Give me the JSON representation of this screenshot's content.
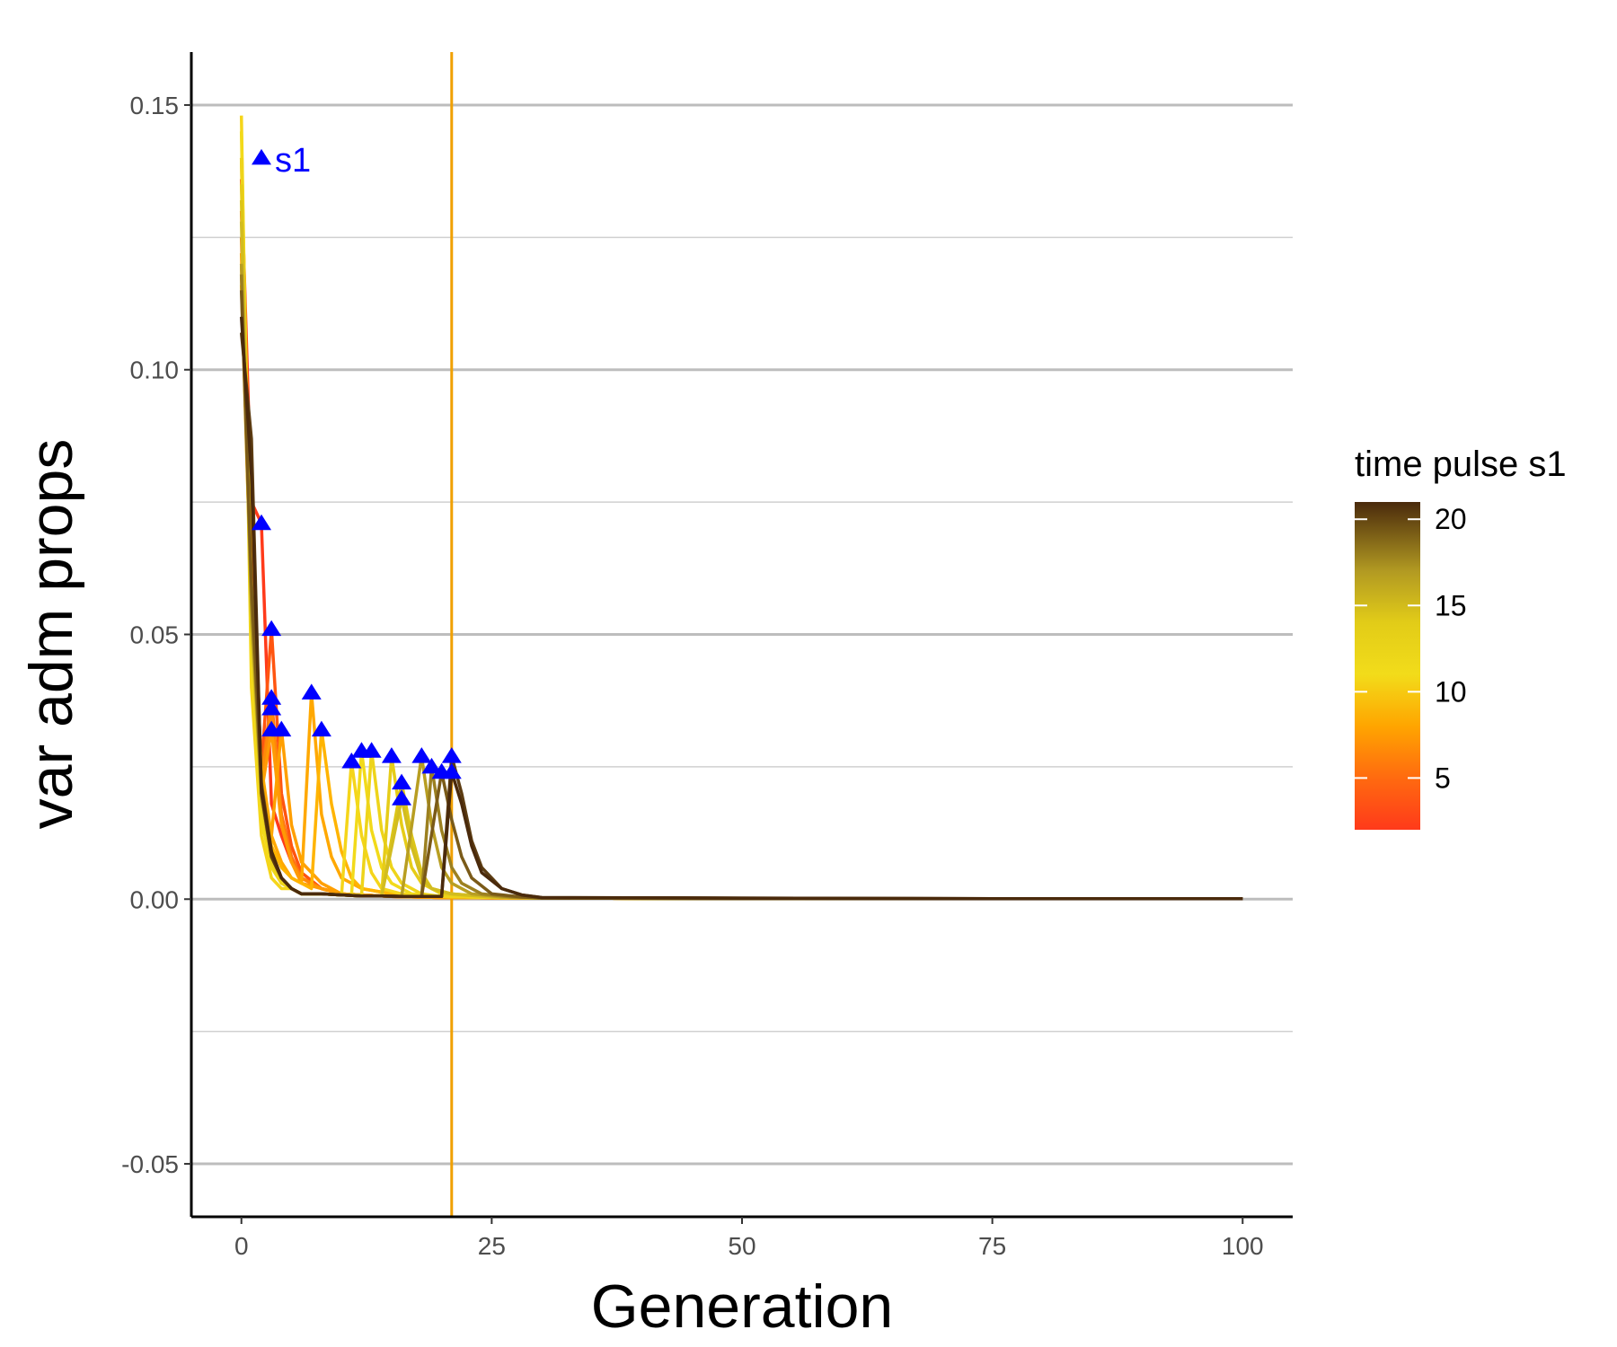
{
  "chart_data": {
    "type": "line",
    "title": "",
    "xlabel": "Generation",
    "ylabel": "var adm props",
    "xlim": [
      -5,
      105
    ],
    "ylim": [
      -0.06,
      0.16
    ],
    "x_ticks": [
      0,
      25,
      50,
      75,
      100
    ],
    "x_tick_labels": [
      "0",
      "25",
      "50",
      "75",
      "100"
    ],
    "y_ticks": [
      -0.05,
      0.0,
      0.05,
      0.1,
      0.15
    ],
    "y_tick_labels": [
      "-0.05",
      "0.00",
      "0.05",
      "0.10",
      "0.15"
    ],
    "y_minor_ticks": [
      -0.025,
      0.025,
      0.075,
      0.125
    ],
    "grid": "horizontal",
    "reference_line": {
      "x": 21,
      "color": "#F0A000"
    },
    "legend": {
      "title": "time pulse s1",
      "position": "right",
      "type": "colorbar",
      "min": 2,
      "max": 21,
      "ticks": [
        5,
        10,
        15,
        20
      ],
      "tick_labels": [
        "5",
        "10",
        "15",
        "20"
      ],
      "gradient_stops": [
        {
          "value": 2,
          "color": "#FF3A1A"
        },
        {
          "value": 5,
          "color": "#FF6A10"
        },
        {
          "value": 8,
          "color": "#FFA500"
        },
        {
          "value": 11,
          "color": "#F2DC1A"
        },
        {
          "value": 14,
          "color": "#E2CC18"
        },
        {
          "value": 17,
          "color": "#B29A22"
        },
        {
          "value": 21,
          "color": "#4A2A0C"
        }
      ]
    },
    "annotation": {
      "text": "s1",
      "x": 2,
      "y": 0.14,
      "color": "#0000FF"
    },
    "marker_color": "#0000FF",
    "series": [
      {
        "pulse": 2,
        "color": "#FF3A1A",
        "x": [
          0,
          1,
          2,
          3,
          4,
          5,
          6,
          8,
          10,
          15,
          20,
          30,
          50,
          75,
          100
        ],
        "y": [
          0.136,
          0.075,
          0.071,
          0.018,
          0.012,
          0.007,
          0.004,
          0.002,
          0.001,
          0.0005,
          0.0003,
          0.0002,
          0.0001,
          0.0001,
          0.0001
        ]
      },
      {
        "pulse": 3,
        "color": "#FF5510",
        "x": [
          0,
          1,
          2,
          3,
          4,
          5,
          6,
          8,
          10,
          15,
          20,
          30,
          50,
          75,
          100
        ],
        "y": [
          0.13,
          0.065,
          0.025,
          0.051,
          0.02,
          0.01,
          0.005,
          0.002,
          0.001,
          0.0005,
          0.0003,
          0.0002,
          0.0001,
          0.0001,
          0.0001
        ]
      },
      {
        "pulse": 3,
        "color": "#FF7410",
        "x": [
          0,
          1,
          2,
          3,
          4,
          5,
          6,
          8,
          10,
          15,
          20,
          30,
          50,
          75,
          100
        ],
        "y": [
          0.125,
          0.06,
          0.023,
          0.038,
          0.016,
          0.008,
          0.004,
          0.002,
          0.001,
          0.0005,
          0.0003,
          0.0002,
          0.0001,
          0.0001,
          0.0001
        ]
      },
      {
        "pulse": 3,
        "color": "#FF8A08",
        "x": [
          0,
          1,
          2,
          3,
          4,
          5,
          6,
          8,
          10,
          15,
          20,
          30,
          50,
          75,
          100
        ],
        "y": [
          0.12,
          0.058,
          0.022,
          0.036,
          0.015,
          0.007,
          0.004,
          0.002,
          0.001,
          0.0005,
          0.0003,
          0.0002,
          0.0001,
          0.0001,
          0.0001
        ]
      },
      {
        "pulse": 3,
        "color": "#FF9A05",
        "x": [
          0,
          1,
          2,
          3,
          4,
          5,
          6,
          8,
          10,
          15,
          20,
          30,
          50,
          75,
          100
        ],
        "y": [
          0.118,
          0.055,
          0.02,
          0.032,
          0.014,
          0.007,
          0.003,
          0.002,
          0.001,
          0.0005,
          0.0003,
          0.0002,
          0.0001,
          0.0001,
          0.0001
        ]
      },
      {
        "pulse": 4,
        "color": "#FF9F00",
        "x": [
          0,
          1,
          2,
          3,
          4,
          5,
          6,
          8,
          10,
          15,
          20,
          30,
          50,
          75,
          100
        ],
        "y": [
          0.122,
          0.056,
          0.022,
          0.012,
          0.032,
          0.014,
          0.007,
          0.003,
          0.001,
          0.0005,
          0.0003,
          0.0002,
          0.0001,
          0.0001,
          0.0001
        ]
      },
      {
        "pulse": 7,
        "color": "#FFA800",
        "x": [
          0,
          1,
          2,
          3,
          4,
          5,
          6,
          7,
          8,
          9,
          10,
          12,
          15,
          20,
          30,
          50,
          75,
          100
        ],
        "y": [
          0.14,
          0.06,
          0.025,
          0.012,
          0.007,
          0.004,
          0.003,
          0.039,
          0.016,
          0.008,
          0.004,
          0.002,
          0.001,
          0.0005,
          0.0002,
          0.0001,
          0.0001,
          0.0001
        ]
      },
      {
        "pulse": 8,
        "color": "#FFB400",
        "x": [
          0,
          1,
          2,
          3,
          4,
          5,
          6,
          7,
          8,
          9,
          10,
          11,
          12,
          15,
          20,
          30,
          50,
          75,
          100
        ],
        "y": [
          0.116,
          0.055,
          0.022,
          0.01,
          0.006,
          0.004,
          0.003,
          0.002,
          0.032,
          0.018,
          0.009,
          0.004,
          0.002,
          0.001,
          0.0005,
          0.0002,
          0.0001,
          0.0001,
          0.0001
        ]
      },
      {
        "pulse": 11,
        "color": "#F5D51A",
        "x": [
          0,
          1,
          2,
          3,
          4,
          5,
          6,
          8,
          10,
          11,
          12,
          13,
          14,
          16,
          20,
          30,
          50,
          75,
          100
        ],
        "y": [
          0.148,
          0.04,
          0.012,
          0.004,
          0.002,
          0.002,
          0.001,
          0.001,
          0.0008,
          0.026,
          0.012,
          0.005,
          0.002,
          0.001,
          0.0005,
          0.0002,
          0.0001,
          0.0001,
          0.0001
        ]
      },
      {
        "pulse": 12,
        "color": "#F2DA1A",
        "x": [
          0,
          1,
          2,
          3,
          4,
          5,
          6,
          8,
          10,
          11,
          12,
          13,
          14,
          15,
          17,
          20,
          30,
          50,
          75,
          100
        ],
        "y": [
          0.145,
          0.045,
          0.015,
          0.006,
          0.003,
          0.002,
          0.001,
          0.001,
          0.0008,
          0.0008,
          0.028,
          0.013,
          0.006,
          0.003,
          0.001,
          0.0005,
          0.0002,
          0.0001,
          0.0001,
          0.0001
        ]
      },
      {
        "pulse": 13,
        "color": "#EED41A",
        "x": [
          0,
          1,
          2,
          3,
          4,
          5,
          6,
          8,
          10,
          12,
          13,
          14,
          15,
          16,
          18,
          20,
          30,
          50,
          75,
          100
        ],
        "y": [
          0.14,
          0.05,
          0.018,
          0.007,
          0.003,
          0.002,
          0.001,
          0.001,
          0.0008,
          0.0008,
          0.028,
          0.013,
          0.006,
          0.003,
          0.001,
          0.0005,
          0.0002,
          0.0001,
          0.0001,
          0.0001
        ]
      },
      {
        "pulse": 15,
        "color": "#E6CC18",
        "x": [
          0,
          1,
          2,
          3,
          4,
          5,
          6,
          8,
          10,
          12,
          14,
          15,
          16,
          17,
          18,
          20,
          25,
          30,
          50,
          75,
          100
        ],
        "y": [
          0.135,
          0.055,
          0.02,
          0.008,
          0.004,
          0.002,
          0.001,
          0.001,
          0.0008,
          0.0006,
          0.0006,
          0.027,
          0.014,
          0.006,
          0.003,
          0.001,
          0.0004,
          0.0002,
          0.0001,
          0.0001,
          0.0001
        ]
      },
      {
        "pulse": 16,
        "color": "#DCC518",
        "x": [
          0,
          1,
          2,
          3,
          4,
          5,
          6,
          8,
          10,
          12,
          14,
          16,
          17,
          18,
          19,
          21,
          25,
          30,
          50,
          75,
          100
        ],
        "y": [
          0.132,
          0.055,
          0.02,
          0.008,
          0.004,
          0.002,
          0.001,
          0.001,
          0.0008,
          0.0006,
          0.0006,
          0.022,
          0.012,
          0.005,
          0.002,
          0.001,
          0.0004,
          0.0002,
          0.0001,
          0.0001,
          0.0001
        ]
      },
      {
        "pulse": 16,
        "color": "#D2BC20",
        "x": [
          0,
          1,
          2,
          3,
          4,
          5,
          6,
          8,
          10,
          12,
          14,
          16,
          17,
          18,
          19,
          21,
          25,
          30,
          50,
          75,
          100
        ],
        "y": [
          0.128,
          0.052,
          0.019,
          0.008,
          0.004,
          0.002,
          0.001,
          0.001,
          0.0008,
          0.0006,
          0.0006,
          0.019,
          0.01,
          0.004,
          0.002,
          0.001,
          0.0004,
          0.0002,
          0.0001,
          0.0001,
          0.0001
        ]
      },
      {
        "pulse": 18,
        "color": "#B89E22",
        "x": [
          0,
          1,
          2,
          3,
          4,
          5,
          6,
          8,
          10,
          12,
          14,
          16,
          18,
          19,
          20,
          21,
          23,
          26,
          30,
          50,
          75,
          100
        ],
        "y": [
          0.12,
          0.058,
          0.021,
          0.009,
          0.004,
          0.002,
          0.001,
          0.001,
          0.0008,
          0.0006,
          0.0006,
          0.0005,
          0.027,
          0.014,
          0.006,
          0.003,
          0.001,
          0.0004,
          0.0002,
          0.0001,
          0.0001,
          0.0001
        ]
      },
      {
        "pulse": 19,
        "color": "#9C8020",
        "x": [
          0,
          1,
          2,
          3,
          4,
          5,
          6,
          8,
          10,
          12,
          14,
          16,
          18,
          19,
          20,
          21,
          22,
          24,
          27,
          30,
          50,
          75,
          100
        ],
        "y": [
          0.118,
          0.056,
          0.02,
          0.008,
          0.004,
          0.002,
          0.001,
          0.001,
          0.0008,
          0.0006,
          0.0006,
          0.0005,
          0.0005,
          0.025,
          0.013,
          0.006,
          0.003,
          0.001,
          0.0004,
          0.0002,
          0.0001,
          0.0001,
          0.0001
        ]
      },
      {
        "pulse": 20,
        "color": "#7A5A18",
        "x": [
          0,
          1,
          2,
          3,
          4,
          5,
          6,
          8,
          10,
          12,
          14,
          16,
          18,
          20,
          21,
          22,
          23,
          25,
          28,
          30,
          50,
          75,
          100
        ],
        "y": [
          0.115,
          0.06,
          0.022,
          0.009,
          0.004,
          0.002,
          0.001,
          0.001,
          0.0008,
          0.0006,
          0.0006,
          0.0005,
          0.0005,
          0.024,
          0.015,
          0.008,
          0.004,
          0.001,
          0.0004,
          0.0002,
          0.0001,
          0.0001,
          0.0001
        ]
      },
      {
        "pulse": 21,
        "color": "#5C3C12",
        "x": [
          0,
          1,
          2,
          3,
          4,
          5,
          6,
          8,
          10,
          12,
          14,
          16,
          18,
          20,
          21,
          22,
          23,
          24,
          26,
          28,
          30,
          50,
          75,
          100
        ],
        "y": [
          0.107,
          0.087,
          0.02,
          0.008,
          0.004,
          0.002,
          0.001,
          0.001,
          0.0008,
          0.0006,
          0.0006,
          0.0005,
          0.0005,
          0.0005,
          0.027,
          0.02,
          0.011,
          0.006,
          0.002,
          0.0008,
          0.0003,
          0.0002,
          0.0001,
          0.0001
        ]
      },
      {
        "pulse": 21,
        "color": "#4A2A0C",
        "x": [
          0,
          1,
          2,
          3,
          4,
          5,
          6,
          8,
          10,
          12,
          14,
          16,
          18,
          20,
          21,
          22,
          23,
          24,
          26,
          28,
          30,
          50,
          75,
          100
        ],
        "y": [
          0.11,
          0.08,
          0.021,
          0.009,
          0.004,
          0.002,
          0.001,
          0.001,
          0.0008,
          0.0006,
          0.0006,
          0.0005,
          0.0005,
          0.0005,
          0.024,
          0.018,
          0.01,
          0.005,
          0.002,
          0.0008,
          0.0003,
          0.0002,
          0.0001,
          0.0001
        ]
      }
    ],
    "markers": [
      {
        "x": 2,
        "y": 0.071
      },
      {
        "x": 3,
        "y": 0.051
      },
      {
        "x": 3,
        "y": 0.038
      },
      {
        "x": 3,
        "y": 0.036
      },
      {
        "x": 3,
        "y": 0.032
      },
      {
        "x": 4,
        "y": 0.032
      },
      {
        "x": 7,
        "y": 0.039
      },
      {
        "x": 8,
        "y": 0.032
      },
      {
        "x": 11,
        "y": 0.026
      },
      {
        "x": 12,
        "y": 0.028
      },
      {
        "x": 13,
        "y": 0.028
      },
      {
        "x": 15,
        "y": 0.027
      },
      {
        "x": 16,
        "y": 0.022
      },
      {
        "x": 16,
        "y": 0.019
      },
      {
        "x": 18,
        "y": 0.027
      },
      {
        "x": 19,
        "y": 0.025
      },
      {
        "x": 20,
        "y": 0.024
      },
      {
        "x": 21,
        "y": 0.027
      },
      {
        "x": 21,
        "y": 0.024
      }
    ]
  }
}
